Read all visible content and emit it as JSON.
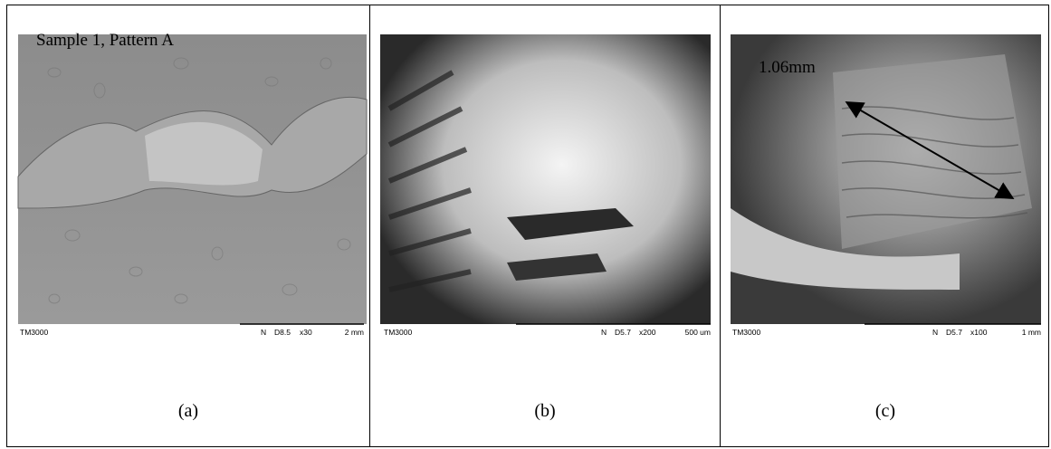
{
  "panels": [
    {
      "overlay_label": "Sample 1, Pattern A",
      "image": {
        "instrument": "TM3000",
        "info": [
          "N",
          "D8.5",
          "x30"
        ],
        "scale": "2 mm"
      },
      "caption": "(a)"
    },
    {
      "image": {
        "instrument": "TM3000",
        "info": [
          "N",
          "D5.7",
          "x200"
        ],
        "scale": "500 um"
      },
      "caption": "(b)"
    },
    {
      "overlay_label": "1.06mm",
      "image": {
        "instrument": "TM3000",
        "info": [
          "N",
          "D5.7",
          "x100"
        ],
        "scale": "1 mm"
      },
      "caption": "(c)"
    }
  ]
}
